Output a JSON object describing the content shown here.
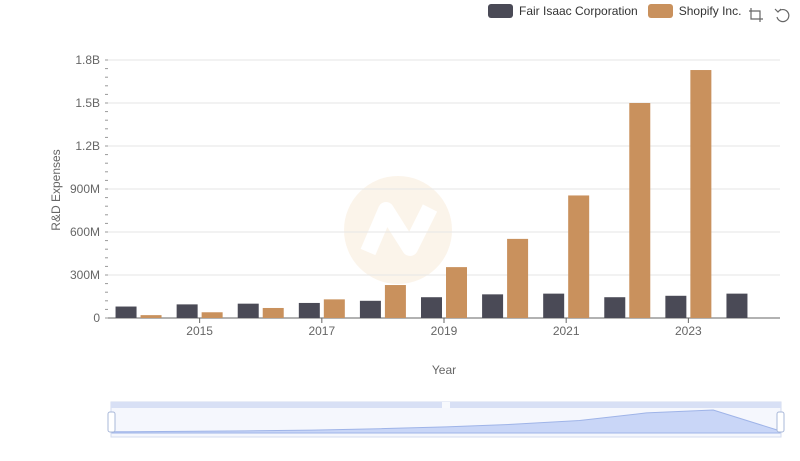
{
  "chart_data": {
    "type": "bar",
    "title": "",
    "xlabel": "Year",
    "ylabel": "R&D Expenses",
    "categories": [
      "2014",
      "2015",
      "2016",
      "2017",
      "2018",
      "2019",
      "2020",
      "2021",
      "2022",
      "2023",
      "2024"
    ],
    "series": [
      {
        "name": "Fair Isaac Corporation",
        "color": "#4a4a56",
        "values": [
          80000000,
          95000000,
          100000000,
          105000000,
          120000000,
          145000000,
          165000000,
          170000000,
          145000000,
          155000000,
          170000000
        ]
      },
      {
        "name": "Shopify Inc.",
        "color": "#c9915d",
        "values": [
          20000000,
          40000000,
          70000000,
          130000000,
          230000000,
          355000000,
          552000000,
          855000000,
          1500000000,
          1730000000,
          null
        ]
      }
    ],
    "x_tick_labels": [
      "2015",
      "2017",
      "2019",
      "2021",
      "2023"
    ],
    "y_ticks": [
      0,
      300000000,
      600000000,
      900000000,
      1200000000,
      1500000000,
      1800000000
    ],
    "y_tick_labels": [
      "0",
      "300M",
      "600M",
      "900M",
      "1.2B",
      "1.5B",
      "1.8B"
    ],
    "ylim": [
      0,
      1800000000
    ],
    "grid": true,
    "legend": "top-right"
  },
  "toolbar": {
    "icons": [
      "zoom-icon",
      "restore-icon"
    ]
  }
}
